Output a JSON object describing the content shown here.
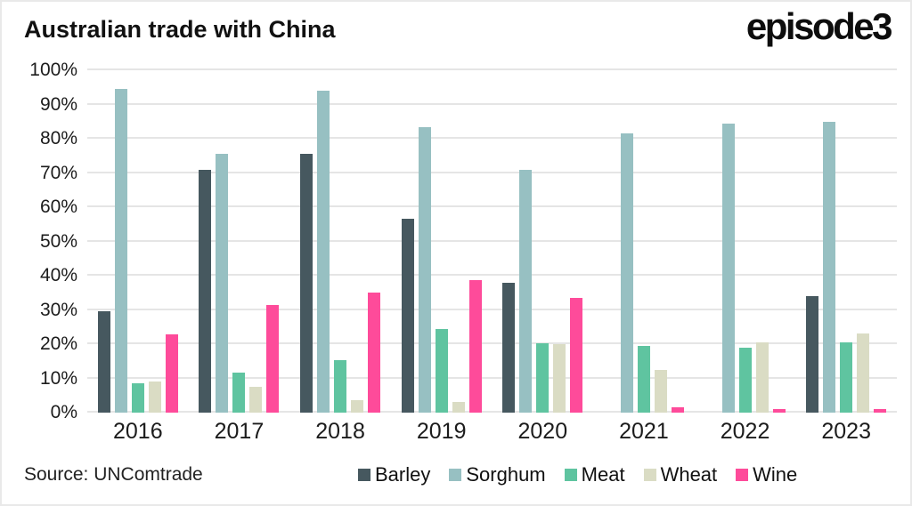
{
  "header": {
    "title": "Australian trade with China",
    "logo": "episode3"
  },
  "footer": {
    "source": "Source: UNComtrade"
  },
  "chart_data": {
    "type": "bar",
    "title": "Australian trade with China",
    "categories": [
      "2016",
      "2017",
      "2018",
      "2019",
      "2020",
      "2021",
      "2022",
      "2023"
    ],
    "series": [
      {
        "name": "Barley",
        "color": "#46585f",
        "values": [
          29.5,
          71,
          75.5,
          56.5,
          38,
          0,
          0,
          34
        ]
      },
      {
        "name": "Sorghum",
        "color": "#97c0c2",
        "values": [
          94.5,
          75.5,
          94,
          83.5,
          71,
          81.5,
          84.5,
          85
        ]
      },
      {
        "name": "Meat",
        "color": "#5fc4a0",
        "values": [
          8.7,
          11.7,
          15.2,
          24.3,
          20.3,
          19.5,
          19,
          20.4
        ]
      },
      {
        "name": "Wheat",
        "color": "#dadcc4",
        "values": [
          9.1,
          7.5,
          3.6,
          3,
          20,
          12.5,
          20.4,
          23
        ]
      },
      {
        "name": "Wine",
        "color": "#fe4b9a",
        "values": [
          22.8,
          31.5,
          35,
          38.6,
          33.5,
          1.5,
          1,
          1
        ]
      }
    ],
    "xlabel": "",
    "ylabel": "",
    "ylim": [
      0,
      100
    ],
    "y_ticks": [
      "0%",
      "10%",
      "20%",
      "30%",
      "40%",
      "50%",
      "60%",
      "70%",
      "80%",
      "90%",
      "100%"
    ],
    "value_unit": "%",
    "grid": true,
    "legend_position": "bottom-right"
  }
}
